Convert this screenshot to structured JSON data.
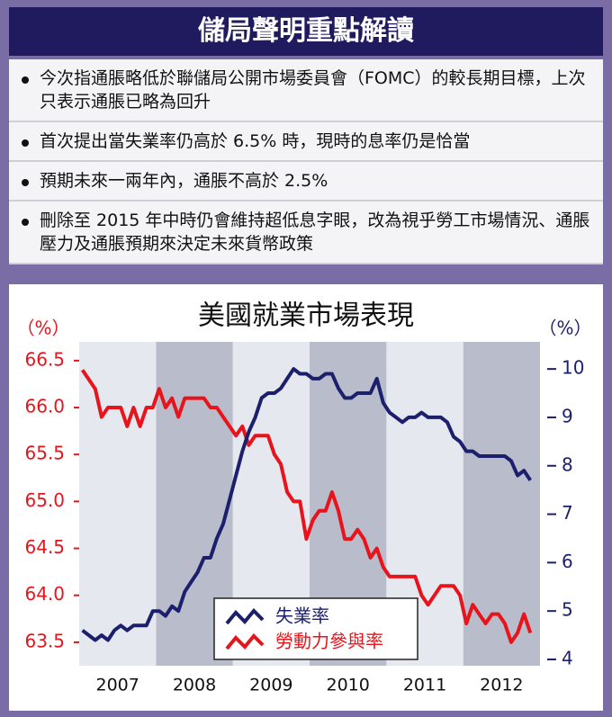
{
  "panel": {
    "title": "儲局聲明重點解讀",
    "bullets": [
      "今次指通脹略低於聯儲局公開市場委員會（FOMC）的較長期目標，上次只表示通脹已略為回升",
      "首次提出當失業率仍高於 6.5% 時，現時的息率仍是恰當",
      "預期未來一兩年內，通脹不高於 2.5%",
      "刪除至 2015 年中時仍會維持超低息字眼，改為視乎勞工市場情況、通脹壓力及通脹預期來決定未來貨幣政策"
    ]
  },
  "chart_data": {
    "type": "line",
    "title": "美國就業市場表現",
    "ylabel": "（%）",
    "y2label": "（%）",
    "categories": [
      null,
      null,
      null,
      null,
      null,
      null,
      "2007",
      null,
      null,
      null,
      null,
      null,
      null,
      null,
      null,
      null,
      null,
      null,
      "2008",
      null,
      null,
      null,
      null,
      null,
      null,
      null,
      null,
      null,
      null,
      null,
      "2009",
      null,
      null,
      null,
      null,
      null,
      null,
      null,
      null,
      null,
      null,
      null,
      "2010",
      null,
      null,
      null,
      null,
      null,
      null,
      null,
      null,
      null,
      null,
      null,
      "2011",
      null,
      null,
      null,
      null,
      null,
      null,
      null,
      null,
      null,
      null,
      null,
      "2012",
      null,
      null,
      null,
      null
    ],
    "band_colors": [
      "#e6e8ef",
      "#b9bccb"
    ],
    "series": [
      {
        "name": "失業率",
        "color": "#1c1f6b",
        "axis": "y2",
        "values": [
          4.6,
          4.5,
          4.4,
          4.5,
          4.4,
          4.6,
          4.7,
          4.6,
          4.7,
          4.7,
          4.7,
          5.0,
          5.0,
          4.9,
          5.1,
          5.0,
          5.4,
          5.6,
          5.8,
          6.1,
          6.1,
          6.5,
          6.8,
          7.3,
          7.8,
          8.3,
          8.7,
          9.0,
          9.4,
          9.5,
          9.5,
          9.6,
          9.8,
          10.0,
          9.9,
          9.9,
          9.8,
          9.8,
          9.9,
          9.9,
          9.6,
          9.4,
          9.4,
          9.5,
          9.5,
          9.5,
          9.8,
          9.3,
          9.1,
          9.0,
          8.9,
          9.0,
          9.0,
          9.1,
          9.0,
          9.0,
          9.0,
          8.9,
          8.6,
          8.5,
          8.3,
          8.3,
          8.2,
          8.2,
          8.2,
          8.2,
          8.2,
          8.1,
          7.8,
          7.9,
          7.7
        ]
      },
      {
        "name": "勞動力參與率",
        "color": "#e8141b",
        "values": [
          66.4,
          66.3,
          66.2,
          65.9,
          66.0,
          66.0,
          66.0,
          65.8,
          66.0,
          65.8,
          66.0,
          66.0,
          66.2,
          66.0,
          66.1,
          65.9,
          66.1,
          66.1,
          66.1,
          66.1,
          66.0,
          66.0,
          65.9,
          65.8,
          65.7,
          65.8,
          65.6,
          65.7,
          65.7,
          65.7,
          65.5,
          65.4,
          65.1,
          65.0,
          65.0,
          64.6,
          64.8,
          64.9,
          64.9,
          65.1,
          64.9,
          64.6,
          64.6,
          64.7,
          64.6,
          64.4,
          64.5,
          64.3,
          64.2,
          64.2,
          64.2,
          64.2,
          64.2,
          64.0,
          63.9,
          64.0,
          64.1,
          64.1,
          64.1,
          64.0,
          63.7,
          63.9,
          63.8,
          63.7,
          63.8,
          63.8,
          63.7,
          63.5,
          63.6,
          63.8,
          63.6
        ]
      }
    ],
    "ylim": [
      63.25,
      66.7
    ],
    "yticks": [
      63.5,
      {
        "value": 64,
        "label": "64.0"
      },
      64.5,
      {
        "value": 65,
        "label": "65.0"
      },
      65.5,
      {
        "value": 66,
        "label": "66.0"
      },
      66.5
    ],
    "y2lim": [
      3.87,
      10.56
    ],
    "y2ticks": [
      4,
      5,
      6,
      7,
      8,
      9,
      10
    ]
  }
}
